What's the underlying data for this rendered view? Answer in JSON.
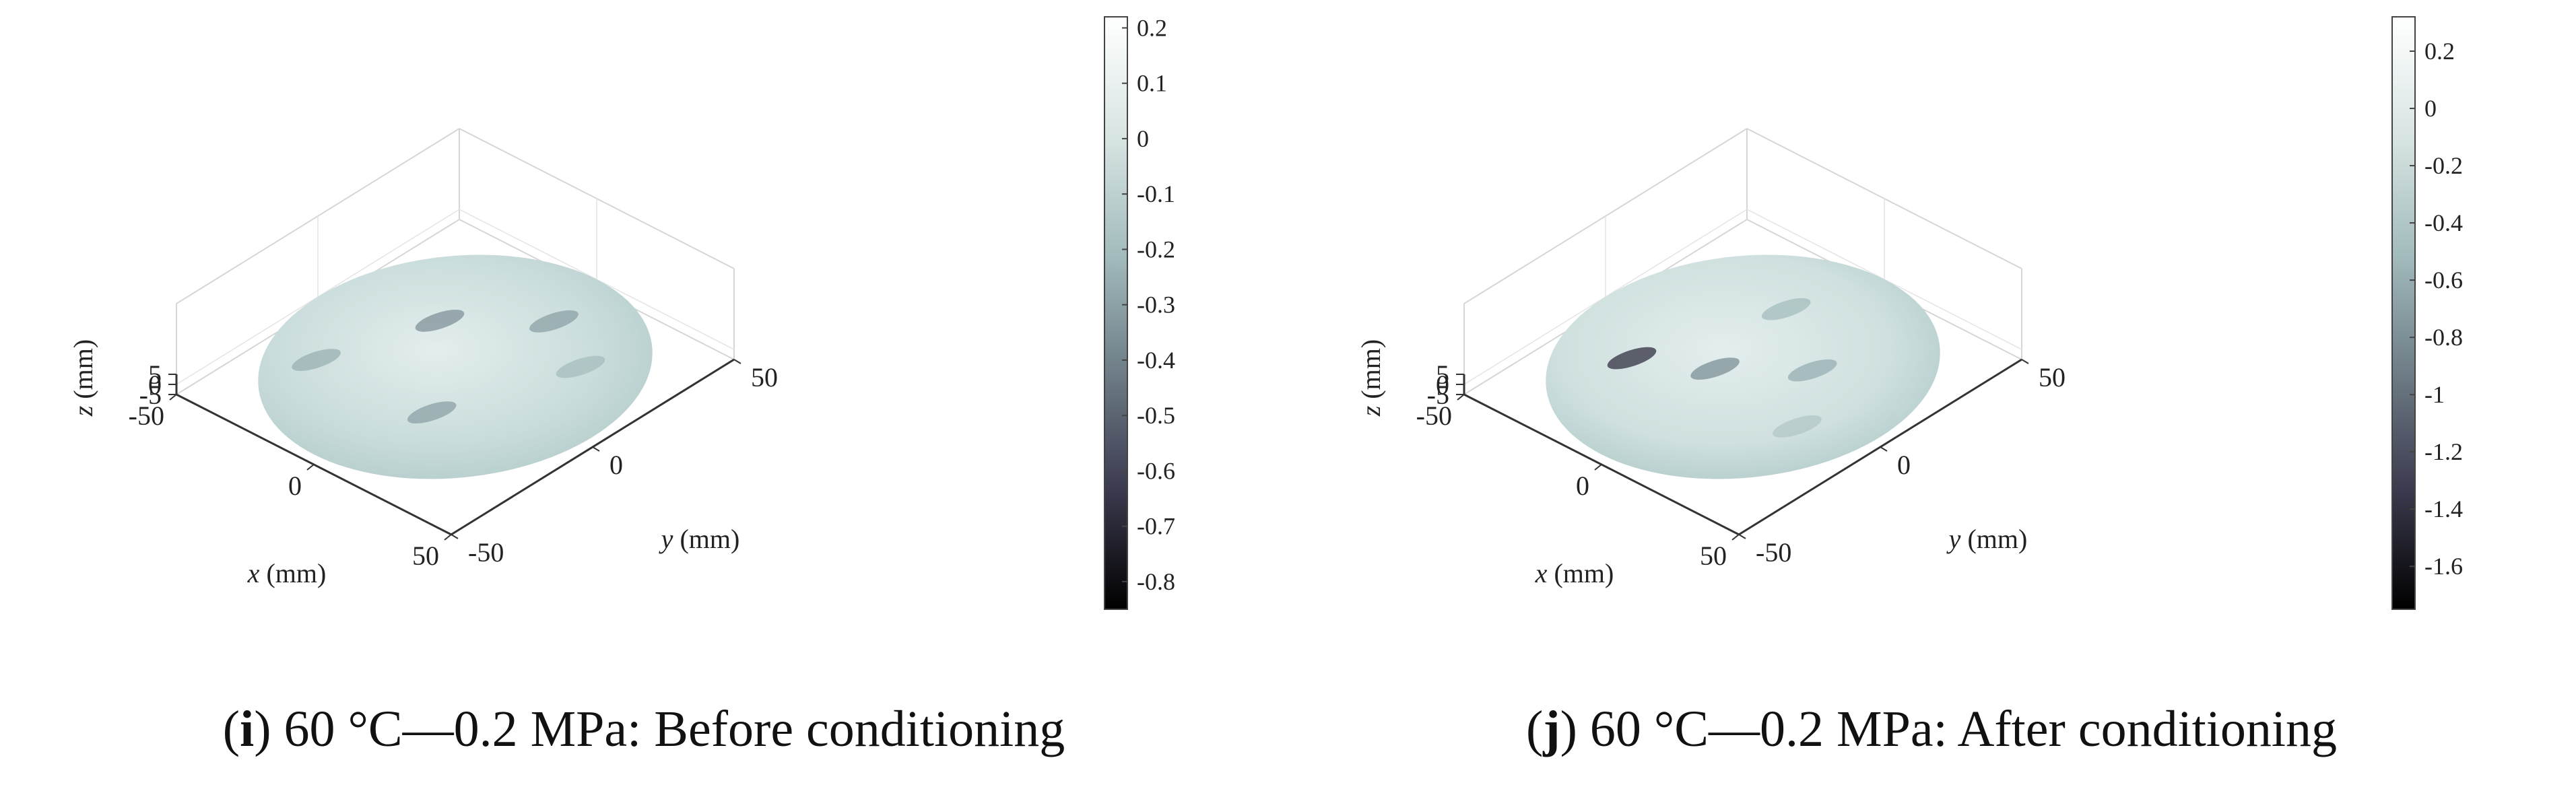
{
  "chart_data": [
    {
      "type": "heatmap",
      "caption_letter": "i",
      "caption_text": " 60 °C—0.2 MPa: Before conditioning",
      "xlabel_var": "x",
      "xlabel_unit": " (mm)",
      "ylabel_var": "y",
      "ylabel_unit": " (mm)",
      "zlabel_var": "z",
      "zlabel_unit": " (mm)",
      "xticks": [
        "-50",
        "0",
        "50"
      ],
      "yticks": [
        "-50",
        "0",
        "50"
      ],
      "zticks": [
        "5",
        "0",
        "-5"
      ],
      "colorbar_ticks": [
        "0.2",
        "0.1",
        "0",
        "-0.1",
        "-0.2",
        "-0.3",
        "-0.4",
        "-0.5",
        "-0.6",
        "-0.7",
        "-0.8"
      ],
      "colorbar_range": [
        -0.85,
        0.22
      ],
      "colormap": [
        "#000000",
        "#3b3a4e",
        "#6e7d87",
        "#a3bcbd",
        "#d8e5e3",
        "#ffffff"
      ],
      "surface_base_color": "#c9dcdb",
      "features": [
        {
          "x": -18,
          "y": 12,
          "value": -0.35
        },
        {
          "x": 10,
          "y": -18,
          "value": -0.3
        },
        {
          "x": -30,
          "y": -20,
          "value": -0.25
        },
        {
          "x": 25,
          "y": 20,
          "value": -0.2
        },
        {
          "x": 5,
          "y": 30,
          "value": -0.3
        }
      ]
    },
    {
      "type": "heatmap",
      "caption_letter": "j",
      "caption_text": " 60 °C—0.2 MPa: After conditioning",
      "xlabel_var": "x",
      "xlabel_unit": " (mm)",
      "ylabel_var": "y",
      "ylabel_unit": " (mm)",
      "zlabel_var": "z",
      "zlabel_unit": " (mm)",
      "xticks": [
        "-50",
        "0",
        "50"
      ],
      "yticks": [
        "-50",
        "0",
        "50"
      ],
      "zticks": [
        "5",
        "0",
        "-5"
      ],
      "colorbar_ticks": [
        "0.2",
        "0",
        "-0.2",
        "-0.4",
        "-0.6",
        "-0.8",
        "-1",
        "-1.2",
        "-1.4",
        "-1.6"
      ],
      "colorbar_range": [
        -1.75,
        0.32
      ],
      "colormap": [
        "#000000",
        "#3b3a4e",
        "#6e7d87",
        "#a3bcbd",
        "#d8e5e3",
        "#ffffff"
      ],
      "surface_base_color": "#cfe0df",
      "features": [
        {
          "x": -25,
          "y": -15,
          "value": -1.4
        },
        {
          "x": -5,
          "y": -5,
          "value": -0.8
        },
        {
          "x": 15,
          "y": 10,
          "value": -0.6
        },
        {
          "x": -10,
          "y": 25,
          "value": -0.5
        },
        {
          "x": 30,
          "y": -10,
          "value": -0.4
        }
      ]
    }
  ]
}
